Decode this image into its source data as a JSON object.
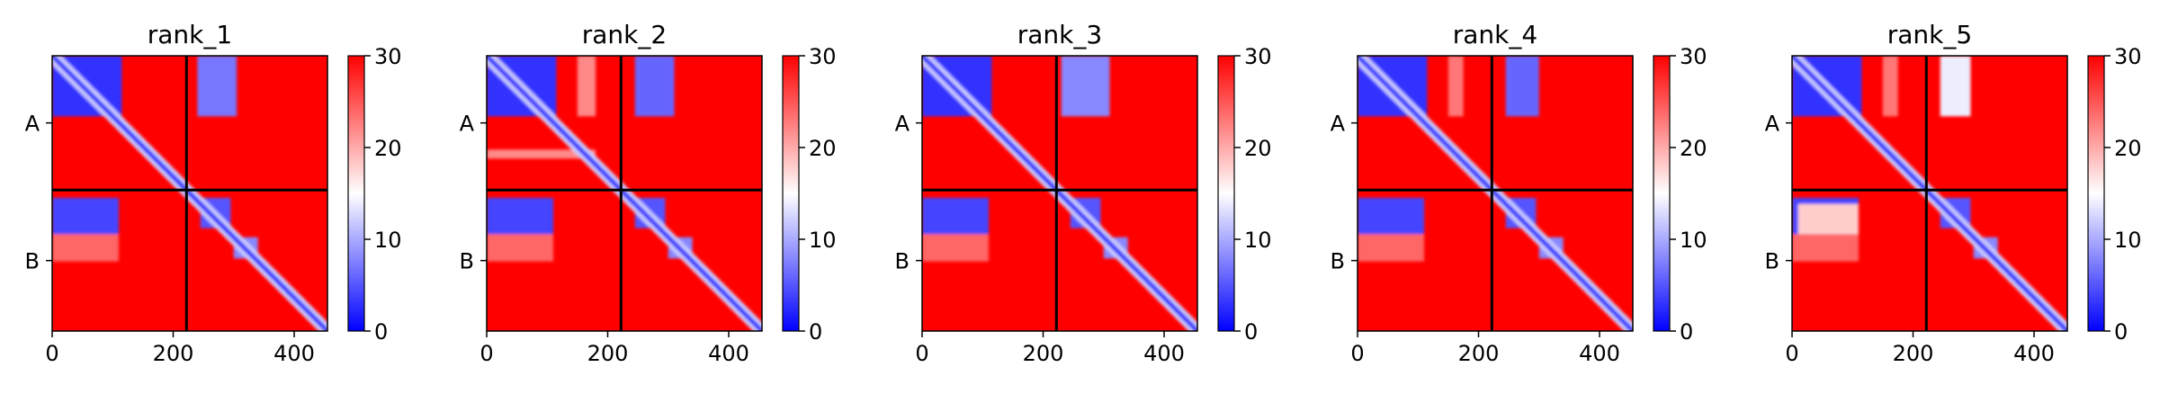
{
  "chart_data": {
    "type": "heatmap",
    "colormap": {
      "name": "bwr",
      "low": "#0000ff",
      "mid": "#ffffff",
      "high": "#ff0000"
    },
    "value_range": [
      0,
      30
    ],
    "colorbar_ticks": [
      "0",
      "10",
      "20",
      "30"
    ],
    "x_ticks": [
      "0",
      "200",
      "400"
    ],
    "x_tick_values": [
      0,
      200,
      400
    ],
    "x_range": [
      0,
      455
    ],
    "chain_labels": [
      "A",
      "B"
    ],
    "chain_boundary": 222,
    "panels": [
      {
        "title": "rank_1",
        "variant": 1
      },
      {
        "title": "rank_2",
        "variant": 2
      },
      {
        "title": "rank_3",
        "variant": 3
      },
      {
        "title": "rank_4",
        "variant": 4
      },
      {
        "title": "rank_5",
        "variant": 5
      }
    ]
  }
}
